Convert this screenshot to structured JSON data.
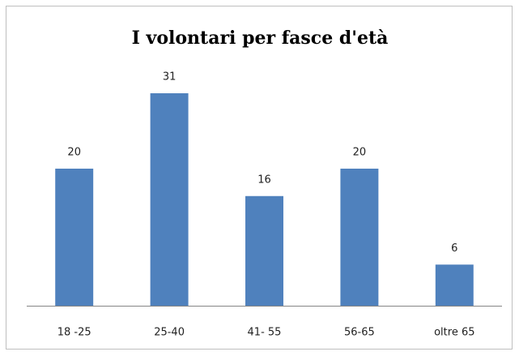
{
  "chart_data": {
    "type": "bar",
    "title": "I volontari per fasce d'età",
    "categories": [
      "18 -25",
      "25-40",
      "41- 55",
      "56-65",
      "oltre 65"
    ],
    "values": [
      20,
      31,
      16,
      20,
      6
    ],
    "color": "#4f81bd"
  }
}
